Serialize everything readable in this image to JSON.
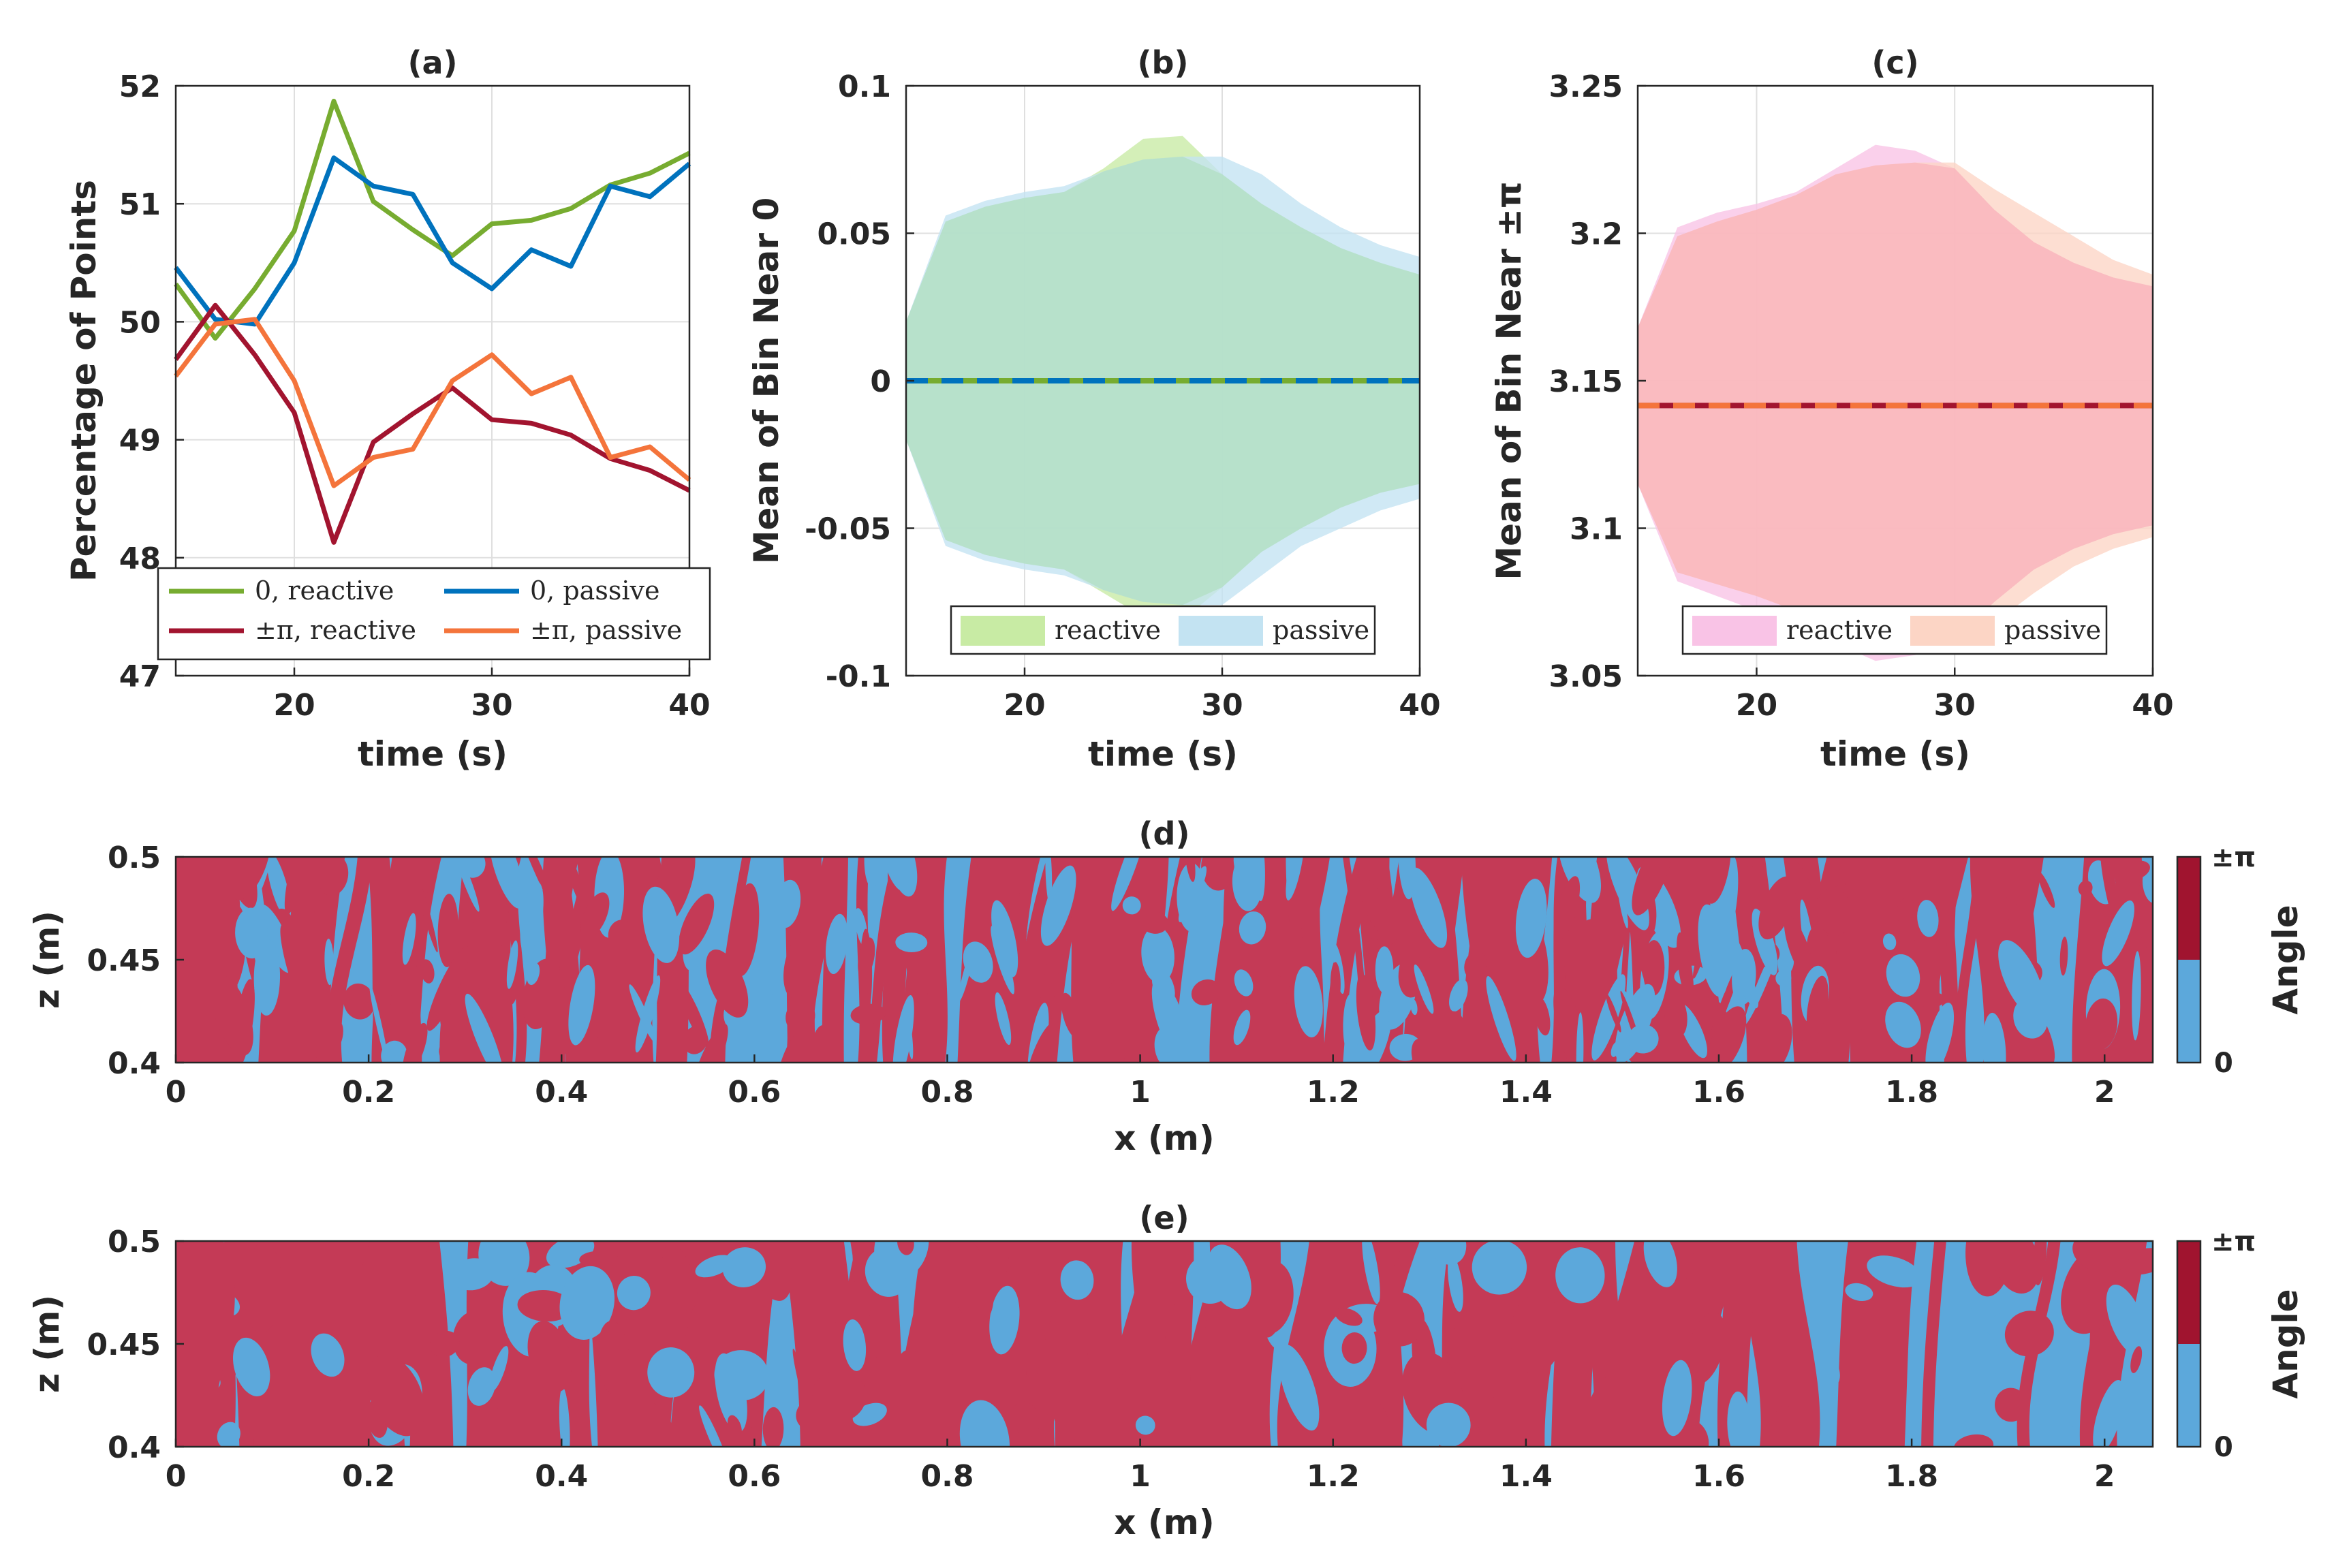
{
  "chart_data": [
    {
      "id": "a",
      "type": "line",
      "title": "(a)",
      "xlabel": "time (s)",
      "ylabel": "Percentage of Points",
      "xlim": [
        14,
        40
      ],
      "ylim": [
        47,
        52
      ],
      "xticks": [
        20,
        30,
        40
      ],
      "yticks": [
        47,
        48,
        49,
        50,
        51,
        52
      ],
      "grid": true,
      "legend": "bottom",
      "x": [
        14,
        16,
        18,
        20,
        22,
        24,
        26,
        28,
        30,
        32,
        34,
        36,
        38,
        40
      ],
      "series": [
        {
          "name": "0, reactive",
          "color": "#77AC30",
          "values": [
            50.32,
            49.86,
            50.28,
            50.77,
            51.87,
            51.02,
            50.78,
            50.56,
            50.83,
            50.86,
            50.96,
            51.16,
            51.26,
            51.43
          ]
        },
        {
          "name": "0, passive",
          "color": "#0072BD",
          "values": [
            50.46,
            50.02,
            49.98,
            50.5,
            51.39,
            51.15,
            51.08,
            50.5,
            50.28,
            50.61,
            50.47,
            51.15,
            51.06,
            51.34
          ]
        },
        {
          "name": "±π, reactive",
          "color": "#A2142F",
          "values": [
            49.68,
            50.14,
            49.72,
            49.23,
            48.13,
            48.98,
            49.22,
            49.44,
            49.17,
            49.14,
            49.04,
            48.84,
            48.74,
            48.57
          ]
        },
        {
          "name": "±π, passive",
          "color": "#F4743B",
          "values": [
            49.54,
            49.98,
            50.02,
            49.5,
            48.61,
            48.85,
            48.92,
            49.5,
            49.72,
            49.39,
            49.53,
            48.85,
            48.94,
            48.66
          ]
        }
      ]
    },
    {
      "id": "b",
      "type": "area",
      "title": "(b)",
      "xlabel": "time (s)",
      "ylabel": "Mean of Bin Near 0",
      "xlim": [
        14,
        40
      ],
      "ylim": [
        -0.1,
        0.1
      ],
      "xticks": [
        20,
        30,
        40
      ],
      "yticks": [
        -0.1,
        -0.05,
        0,
        0.05,
        0.1
      ],
      "ytick_labels": [
        "-0.1",
        "-0.05",
        "0",
        "0.05",
        "0.1"
      ],
      "grid": true,
      "legend": "bottom",
      "x": [
        14,
        16,
        18,
        20,
        22,
        24,
        26,
        28,
        30,
        32,
        34,
        36,
        38,
        40
      ],
      "series": [
        {
          "name": "reactive",
          "mean_color": "#77AC30",
          "band_color": "#C8EBA4",
          "mean": [
            0,
            0,
            0,
            0,
            0,
            0,
            0,
            0,
            0,
            0,
            0,
            0,
            0,
            0
          ],
          "upper": [
            0.02,
            0.054,
            0.059,
            0.062,
            0.064,
            0.072,
            0.082,
            0.083,
            0.07,
            0.06,
            0.052,
            0.045,
            0.04,
            0.036
          ],
          "lower": [
            -0.02,
            -0.054,
            -0.059,
            -0.062,
            -0.064,
            -0.072,
            -0.08,
            -0.081,
            -0.07,
            -0.058,
            -0.05,
            -0.043,
            -0.038,
            -0.035
          ]
        },
        {
          "name": "passive",
          "mean_color": "#0072BD",
          "band_color": "#C3E3F2",
          "mean": [
            0,
            0,
            0,
            0,
            0,
            0,
            0,
            0,
            0,
            0,
            0,
            0,
            0,
            0
          ],
          "upper": [
            0.02,
            0.056,
            0.061,
            0.064,
            0.066,
            0.071,
            0.075,
            0.076,
            0.076,
            0.07,
            0.06,
            0.052,
            0.046,
            0.042
          ],
          "lower": [
            -0.02,
            -0.056,
            -0.061,
            -0.064,
            -0.066,
            -0.071,
            -0.075,
            -0.076,
            -0.076,
            -0.066,
            -0.056,
            -0.05,
            -0.044,
            -0.04
          ]
        }
      ]
    },
    {
      "id": "c",
      "type": "area",
      "title": "(c)",
      "xlabel": "time (s)",
      "ylabel": "Mean of Bin Near ±π",
      "xlim": [
        14,
        40
      ],
      "ylim": [
        3.05,
        3.25
      ],
      "xticks": [
        20,
        30,
        40
      ],
      "yticks": [
        3.05,
        3.1,
        3.15,
        3.2,
        3.25
      ],
      "ytick_labels": [
        "3.05",
        "3.1",
        "3.15",
        "3.2",
        "3.25"
      ],
      "grid": true,
      "legend": "bottom",
      "x": [
        14,
        16,
        18,
        20,
        22,
        24,
        26,
        28,
        30,
        32,
        34,
        36,
        38,
        40
      ],
      "series": [
        {
          "name": "reactive",
          "mean_color": "#A2142F",
          "band_color": "#F9C3E6",
          "mean": [
            3.1416,
            3.1416,
            3.1416,
            3.1416,
            3.1416,
            3.1416,
            3.1416,
            3.1416,
            3.1416,
            3.1416,
            3.1416,
            3.1416,
            3.1416,
            3.1416
          ],
          "upper": [
            3.168,
            3.202,
            3.207,
            3.21,
            3.214,
            3.222,
            3.23,
            3.228,
            3.222,
            3.208,
            3.197,
            3.19,
            3.185,
            3.182
          ],
          "lower": [
            3.115,
            3.082,
            3.077,
            3.072,
            3.068,
            3.061,
            3.055,
            3.057,
            3.062,
            3.075,
            3.086,
            3.093,
            3.098,
            3.101
          ]
        },
        {
          "name": "passive",
          "mean_color": "#F4743B",
          "band_color": "#FCD5C5",
          "mean": [
            3.1416,
            3.1416,
            3.1416,
            3.1416,
            3.1416,
            3.1416,
            3.1416,
            3.1416,
            3.1416,
            3.1416,
            3.1416,
            3.1416,
            3.1416,
            3.1416
          ],
          "upper": [
            3.168,
            3.199,
            3.204,
            3.208,
            3.213,
            3.22,
            3.223,
            3.224,
            3.224,
            3.215,
            3.207,
            3.199,
            3.191,
            3.186
          ],
          "lower": [
            3.115,
            3.085,
            3.081,
            3.077,
            3.072,
            3.064,
            3.062,
            3.06,
            3.06,
            3.068,
            3.078,
            3.087,
            3.093,
            3.097
          ]
        }
      ]
    },
    {
      "id": "d",
      "type": "heatmap",
      "title": "(d)",
      "xlabel": "x (m)",
      "ylabel": "z (m)",
      "xlim": [
        0,
        2.05
      ],
      "ylim": [
        0.4,
        0.5
      ],
      "xticks": [
        0,
        0.2,
        0.4,
        0.6,
        0.8,
        1,
        1.2,
        1.4,
        1.6,
        1.8,
        2
      ],
      "yticks": [
        0.4,
        0.45,
        0.5
      ],
      "ytick_labels": [
        "0.4",
        "0.45",
        "0.5"
      ],
      "colors": {
        "near_pi": "#C43A56",
        "near_zero": "#5CA8DB"
      },
      "colorbar": {
        "label": "Angle",
        "ticks": [
          "0",
          "±π"
        ],
        "colors": [
          "#5CA8DB",
          "#A0142F"
        ]
      },
      "pattern_seed": 17,
      "band_count": 150
    },
    {
      "id": "e",
      "type": "heatmap",
      "title": "(e)",
      "xlabel": "x (m)",
      "ylabel": "z (m)",
      "xlim": [
        0,
        2.05
      ],
      "ylim": [
        0.4,
        0.5
      ],
      "xticks": [
        0,
        0.2,
        0.4,
        0.6,
        0.8,
        1,
        1.2,
        1.4,
        1.6,
        1.8,
        2
      ],
      "yticks": [
        0.4,
        0.45,
        0.5
      ],
      "ytick_labels": [
        "0.4",
        "0.45",
        "0.5"
      ],
      "colors": {
        "near_pi": "#C43A56",
        "near_zero": "#5CA8DB"
      },
      "colorbar": {
        "label": "Angle",
        "ticks": [
          "0",
          "±π"
        ],
        "colors": [
          "#5CA8DB",
          "#A0142F"
        ]
      },
      "pattern_seed": 91,
      "band_count": 70
    }
  ]
}
